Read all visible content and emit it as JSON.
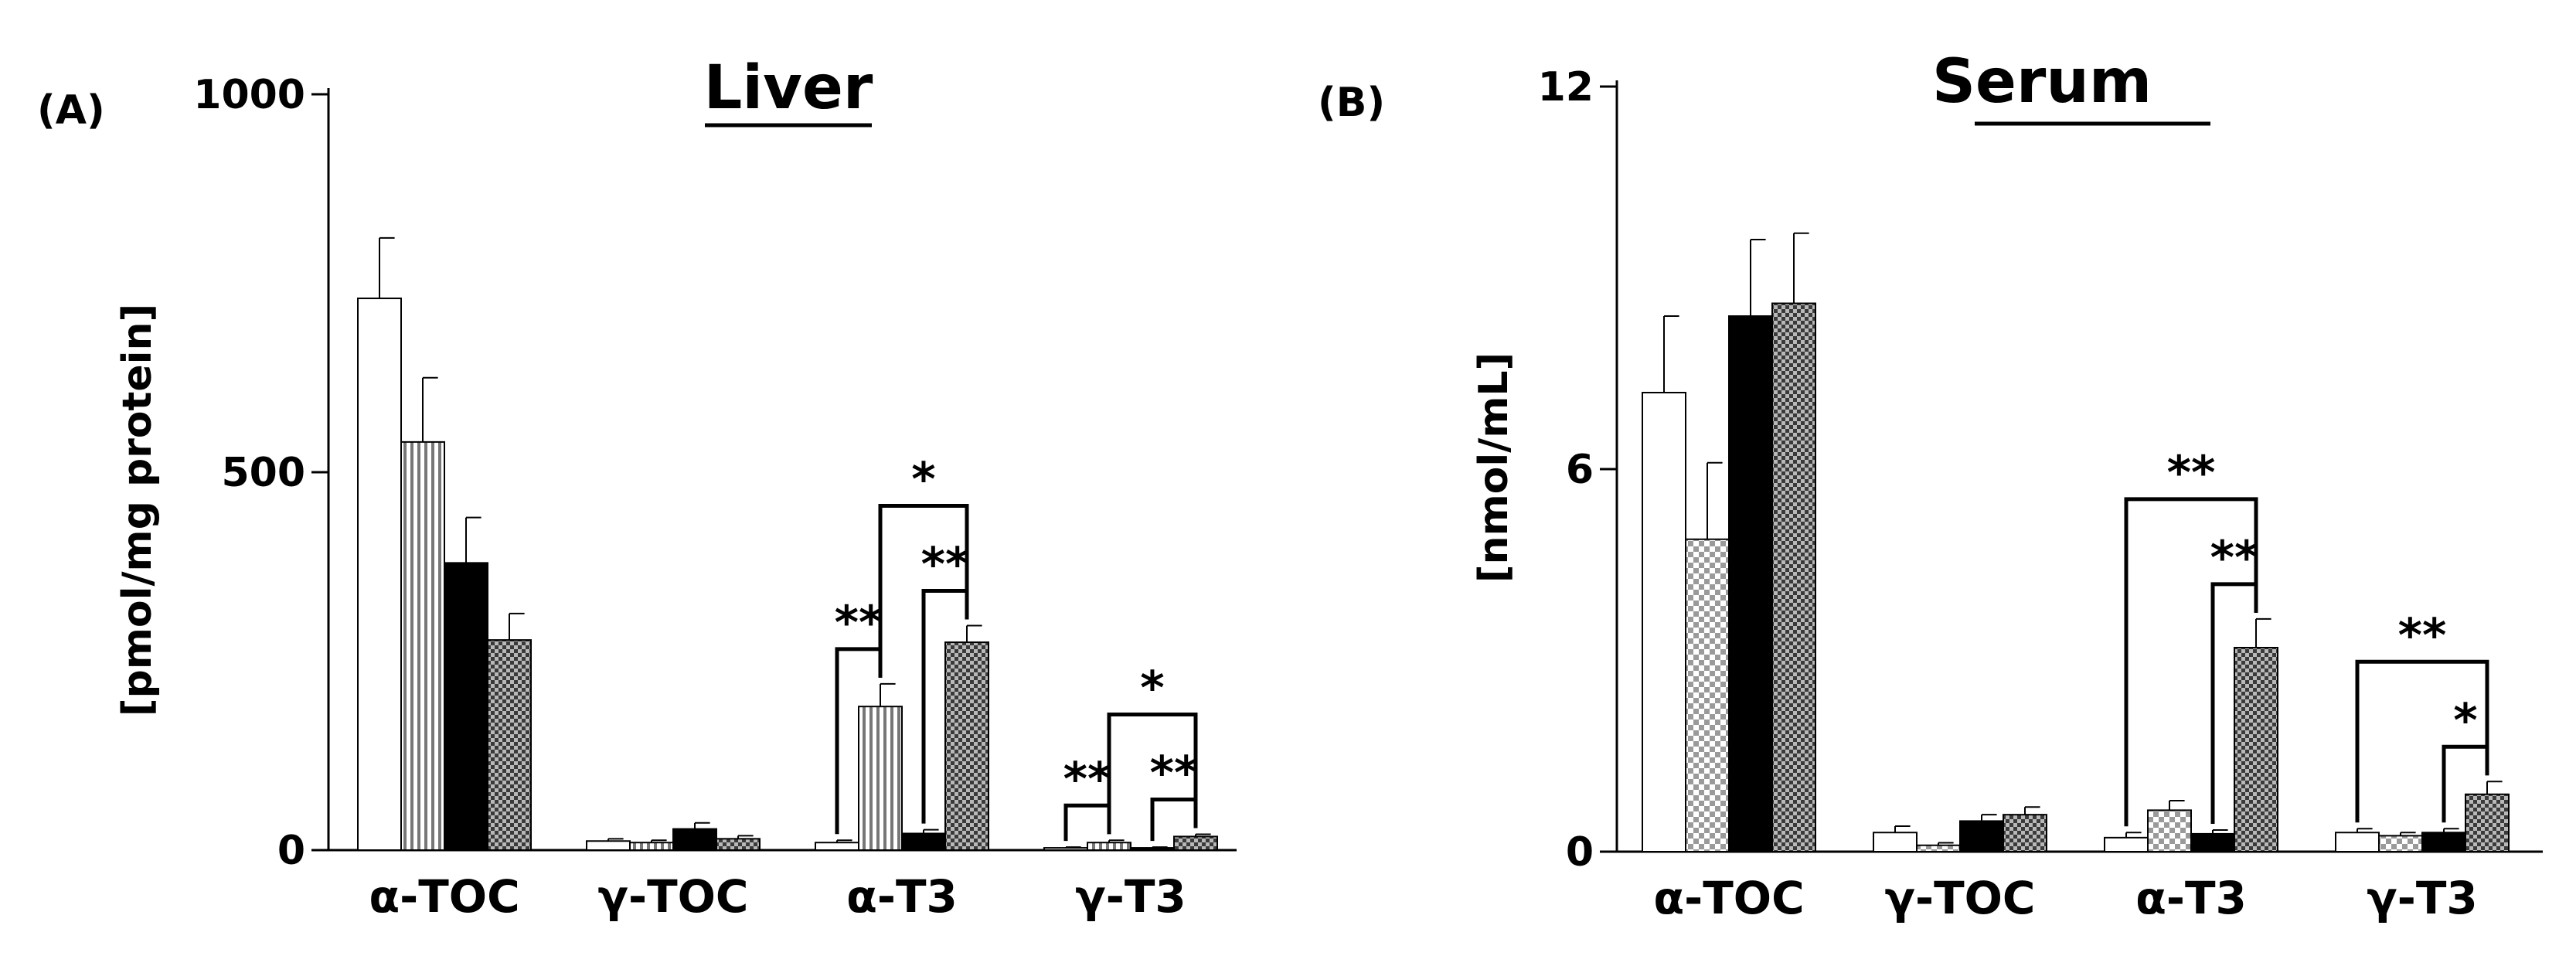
{
  "chart_data": [
    {
      "panel_label": "(A)",
      "title": "Liver",
      "type": "bar",
      "ylabel": "[pmol/mg protein]",
      "ylim": [
        0,
        1000
      ],
      "yticks": [
        "0",
        "500",
        "1000"
      ],
      "categories": [
        "α-TOC",
        "γ-TOC",
        "α-T3",
        "γ-T3"
      ],
      "series": [
        {
          "values": [
            730,
            12,
            10,
            3
          ],
          "errors": [
            80,
            3,
            3,
            1
          ]
        },
        {
          "values": [
            540,
            10,
            190,
            10
          ],
          "errors": [
            85,
            3,
            30,
            3
          ]
        },
        {
          "values": [
            380,
            28,
            22,
            3
          ],
          "errors": [
            60,
            8,
            5,
            1
          ]
        },
        {
          "values": [
            278,
            15,
            275,
            18
          ],
          "errors": [
            35,
            4,
            22,
            3
          ]
        }
      ],
      "significance": [
        {
          "category": 2,
          "from": 0,
          "to": 1,
          "label": "**"
        },
        {
          "category": 2,
          "from": 2,
          "to": 3,
          "label": "**"
        },
        {
          "category": 2,
          "from": 1,
          "to": 3,
          "label": "*"
        },
        {
          "category": 3,
          "from": 0,
          "to": 1,
          "label": "**"
        },
        {
          "category": 3,
          "from": 2,
          "to": 3,
          "label": "**"
        },
        {
          "category": 3,
          "from": 1,
          "to": 3,
          "label": "*"
        }
      ]
    },
    {
      "panel_label": "(B)",
      "title": "Serum",
      "type": "bar",
      "ylabel": "[nmol/mL]",
      "ylim": [
        0,
        12
      ],
      "yticks": [
        "0",
        "6",
        "12"
      ],
      "categories": [
        "α-TOC",
        "γ-TOC",
        "α-T3",
        "γ-T3"
      ],
      "series": [
        {
          "values": [
            7.2,
            0.3,
            0.22,
            0.3
          ],
          "errors": [
            1.2,
            0.1,
            0.08,
            0.06
          ]
        },
        {
          "values": [
            4.9,
            0.1,
            0.65,
            0.25
          ],
          "errors": [
            1.2,
            0.04,
            0.15,
            0.05
          ]
        },
        {
          "values": [
            8.4,
            0.48,
            0.28,
            0.3
          ],
          "errors": [
            1.2,
            0.1,
            0.06,
            0.06
          ]
        },
        {
          "values": [
            8.6,
            0.58,
            3.2,
            0.9
          ],
          "errors": [
            1.1,
            0.12,
            0.45,
            0.2
          ]
        }
      ],
      "significance": [
        {
          "category": 2,
          "from": 2,
          "to": 3,
          "label": "**"
        },
        {
          "category": 2,
          "from": 0,
          "to": 3,
          "label": "**"
        },
        {
          "category": 3,
          "from": 2,
          "to": 3,
          "label": "*"
        },
        {
          "category": 3,
          "from": 0,
          "to": 3,
          "label": "**"
        }
      ]
    }
  ]
}
